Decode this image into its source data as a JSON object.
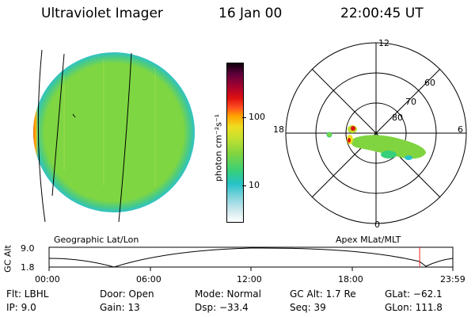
{
  "header": {
    "title": "Ultraviolet Imager",
    "date": "16 Jan 00",
    "time": "22:00:45 UT"
  },
  "colorbar": {
    "unit_label": "photon cm⁻²s⁻¹",
    "tick_100": "100",
    "tick_10": "10",
    "colors": [
      "#ffffff",
      "#c8e6ec",
      "#7fd3dc",
      "#25c2c8",
      "#36d07a",
      "#80d440",
      "#bfe030",
      "#eedf20",
      "#ffa000",
      "#ff5020",
      "#e01010",
      "#a00030",
      "#60003c",
      "#10000e"
    ]
  },
  "globe": {
    "label": "Geographic Lat/Lon",
    "colors": {
      "disk": "#7ed642",
      "limb": "#2fc2c6",
      "aurora": "#f04010"
    }
  },
  "polar": {
    "label": "Apex MLat/MLT",
    "mlt_12": "12",
    "mlt_18": "18",
    "mlt_6": "6",
    "mlt_0": "0",
    "lat_60": "60",
    "lat_70": "70",
    "lat_80": "80"
  },
  "gc_plot": {
    "axis_label": "GC Alt",
    "y_top": "9.0",
    "y_bottom": "1.8",
    "x_ticks": [
      "00:00",
      "06:00",
      "12:00",
      "18:00",
      "23:59"
    ],
    "marker_color": "#ff2020",
    "marker_time": "22:00:45"
  },
  "status": {
    "flt": "Flt:  LBHL",
    "ip": "IP:  9.0",
    "door": "Door:  Open",
    "gain": "Gain:  13",
    "mode": "Mode:  Normal",
    "dsp": "Dsp:   −33.4",
    "gc_alt": "GC Alt:  1.7 Re",
    "seq": "Seq:  39",
    "glat": "GLat:  −62.1",
    "glon": "GLon:  111.8"
  }
}
